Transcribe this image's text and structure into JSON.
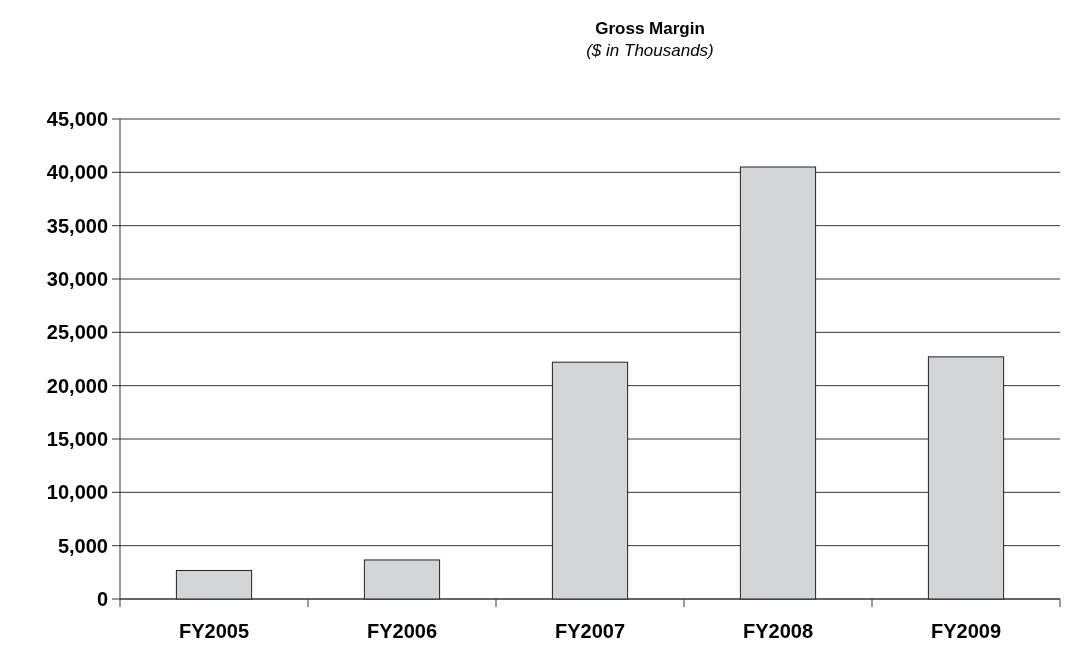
{
  "chart_data": {
    "type": "bar",
    "title": "Gross Margin",
    "subtitle": "($ in Thousands)",
    "categories": [
      "FY2005",
      "FY2006",
      "FY2007",
      "FY2008",
      "FY2009"
    ],
    "values": [
      2670,
      3660,
      22200,
      40500,
      22700
    ],
    "color": "#d4d5d7",
    "ylim": [
      0,
      45000
    ],
    "yticks": [
      {
        "value": 0,
        "label": "0"
      },
      {
        "value": 5000,
        "label": "5,000"
      },
      {
        "value": 10000,
        "label": "10,000"
      },
      {
        "value": 15000,
        "label": "15,000"
      },
      {
        "value": 20000,
        "label": "20,000"
      },
      {
        "value": 25000,
        "label": "25,000"
      },
      {
        "value": 30000,
        "label": "30,000"
      },
      {
        "value": 35000,
        "label": "35,000"
      },
      {
        "value": 40000,
        "label": "40,000"
      },
      {
        "value": 45000,
        "label": "45,000"
      }
    ],
    "grid": "y"
  }
}
